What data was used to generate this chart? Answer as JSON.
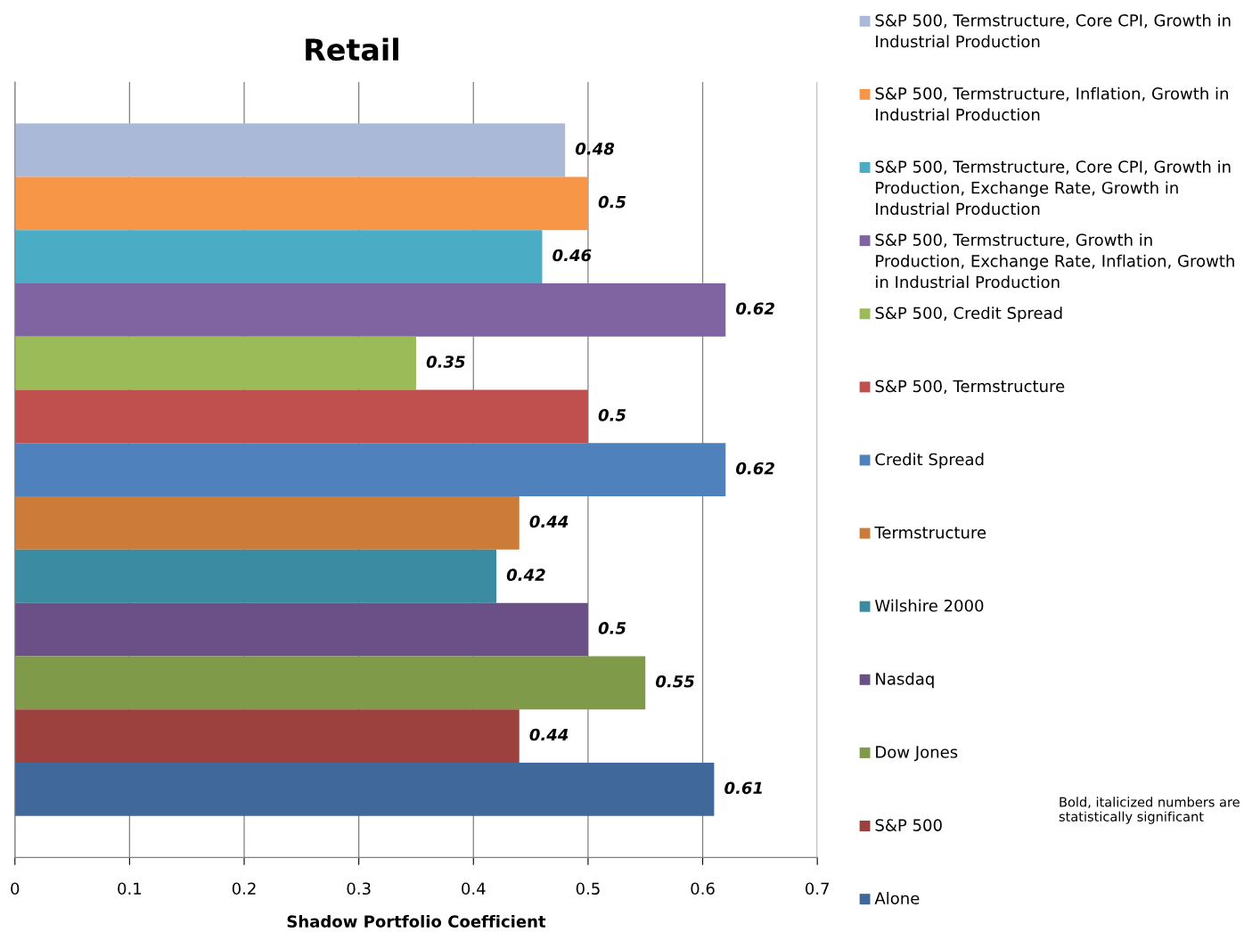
{
  "chart_data": {
    "type": "bar",
    "orientation": "horizontal",
    "title": "Retail",
    "xlabel": "Shadow Portfolio Coefficient",
    "categories": [
      null
    ],
    "series": [
      {
        "name": "S&P 500, Termstructure, Core CPI, Growth in Industrial Production",
        "color": "#aab9d8",
        "values": [
          0.48
        ]
      },
      {
        "name": "S&P 500, Termstructure, Inflation, Growth in Industrial Production",
        "color": "#f79646",
        "values": [
          0.5
        ]
      },
      {
        "name": "S&P 500, Termstructure, Core CPI, Growth in Production, Exchange Rate, Growth in Industrial Production",
        "color": "#4bacc6",
        "values": [
          0.46
        ]
      },
      {
        "name": "S&P 500, Termstructure, Growth in Production, Exchange Rate, Inflation, Growth in Industrial Production",
        "color": "#8064a2",
        "values": [
          0.62
        ]
      },
      {
        "name": "S&P 500, Credit Spread",
        "color": "#9bbb59",
        "values": [
          0.35
        ]
      },
      {
        "name": "S&P 500, Termstructure",
        "color": "#c0504d",
        "values": [
          0.5
        ]
      },
      {
        "name": "Credit Spread",
        "color": "#4f81bd",
        "values": [
          0.62
        ]
      },
      {
        "name": "Termstructure",
        "color": "#cc7b38",
        "values": [
          0.44
        ]
      },
      {
        "name": "Wilshire 2000",
        "color": "#3b8ca2",
        "values": [
          0.42
        ]
      },
      {
        "name": "Nasdaq",
        "color": "#6a5087",
        "values": [
          0.5
        ]
      },
      {
        "name": "Dow Jones",
        "color": "#7f9a48",
        "values": [
          0.55
        ]
      },
      {
        "name": "S&P 500",
        "color": "#9c413e",
        "values": [
          0.44
        ]
      },
      {
        "name": "Alone",
        "color": "#41689b",
        "values": [
          0.61
        ]
      }
    ],
    "xlim": [
      0,
      0.7
    ],
    "xticks": [
      0,
      0.1,
      0.2,
      0.3,
      0.4,
      0.5,
      0.6,
      0.7
    ],
    "grid": "x",
    "legend": "right",
    "data_labels": true,
    "annotations": [
      "Bold, italicized numbers are statistically significant"
    ]
  }
}
